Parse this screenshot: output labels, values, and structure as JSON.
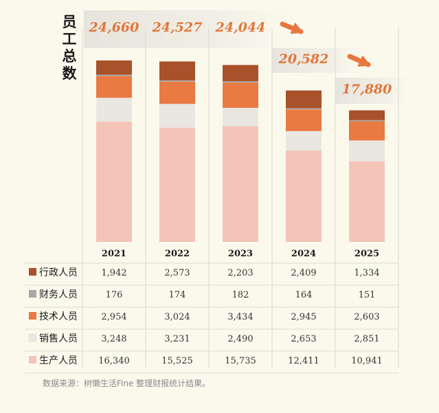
{
  "chart_data": {
    "type": "bar",
    "stacked": true,
    "title_chars": [
      "员",
      "工",
      "总",
      "数"
    ],
    "categories": [
      "2021",
      "2022",
      "2023",
      "2024",
      "2025"
    ],
    "totals": [
      "24,660",
      "24,527",
      "24,044",
      "20,582",
      "17,880"
    ],
    "total_values": [
      24660,
      24527,
      24044,
      20582,
      17880
    ],
    "series": [
      {
        "name": "行政人员",
        "values": [
          1942,
          2573,
          2203,
          2409,
          1334
        ],
        "labels": [
          "1,942",
          "2,573",
          "2,203",
          "2,409",
          "1,334"
        ],
        "color": "#a8512a"
      },
      {
        "name": "财务人员",
        "values": [
          176,
          174,
          182,
          164,
          151
        ],
        "labels": [
          "176",
          "174",
          "182",
          "164",
          "151"
        ],
        "color": "#a8a8a8"
      },
      {
        "name": "技术人员",
        "values": [
          2954,
          3024,
          3434,
          2945,
          2603
        ],
        "labels": [
          "2,954",
          "3,024",
          "3,434",
          "2,945",
          "2,603"
        ],
        "color": "#e87a42"
      },
      {
        "name": "销售人员",
        "values": [
          3248,
          3231,
          2490,
          2653,
          2851
        ],
        "labels": [
          "3,248",
          "3,231",
          "2,490",
          "2,653",
          "2,851"
        ],
        "color": "#eae6e2"
      },
      {
        "name": "生产人员",
        "values": [
          16340,
          15525,
          15735,
          12411,
          10941
        ],
        "labels": [
          "16,340",
          "15,525",
          "15,735",
          "12,411",
          "10,941"
        ],
        "color": "#f4c4b8"
      }
    ],
    "colors": {
      "total_label": "#e0783c",
      "arrow": "#e8763e",
      "grid": "#dcdad0",
      "text": "#1a1a1a"
    }
  },
  "source": "数据来源：树懒生活Fine 整理财报统计结果。"
}
